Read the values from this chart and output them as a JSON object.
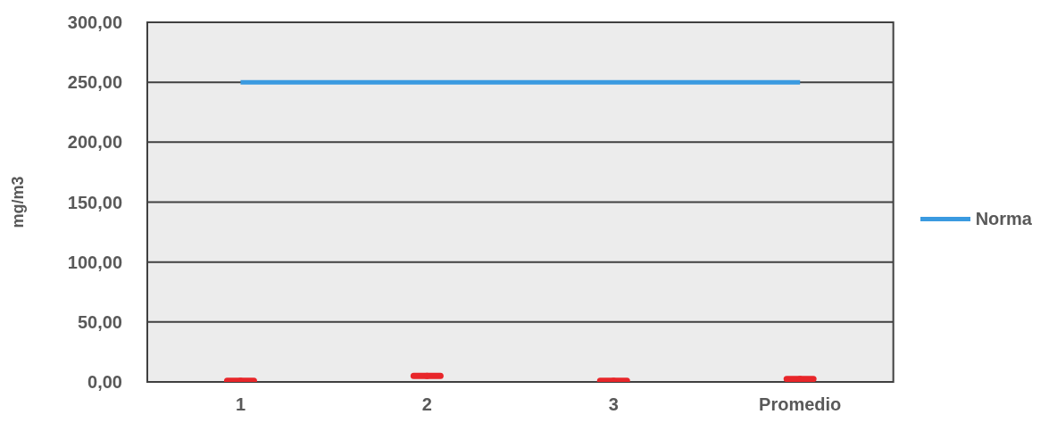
{
  "chart_data": {
    "type": "scatter",
    "ylabel": "mg/m3",
    "categories": [
      "1",
      "2",
      "3",
      "Promedio"
    ],
    "series": [
      {
        "name": "Norma",
        "type": "line",
        "color": "#3a9ae0",
        "values": [
          250,
          250,
          250,
          250
        ]
      },
      {
        "color": "#e8262a",
        "values": [
          1,
          5,
          1,
          2.5
        ]
      }
    ],
    "ylim": [
      0,
      300
    ],
    "yticks": [
      {
        "value": 0,
        "label": "0,00"
      },
      {
        "value": 50,
        "label": "50,00"
      },
      {
        "value": 100,
        "label": "100,00"
      },
      {
        "value": 150,
        "label": "150,00"
      },
      {
        "value": 200,
        "label": "200,00"
      },
      {
        "value": 250,
        "label": "250,00"
      },
      {
        "value": 300,
        "label": "300,00"
      }
    ],
    "grid": "y",
    "legend": "right"
  }
}
